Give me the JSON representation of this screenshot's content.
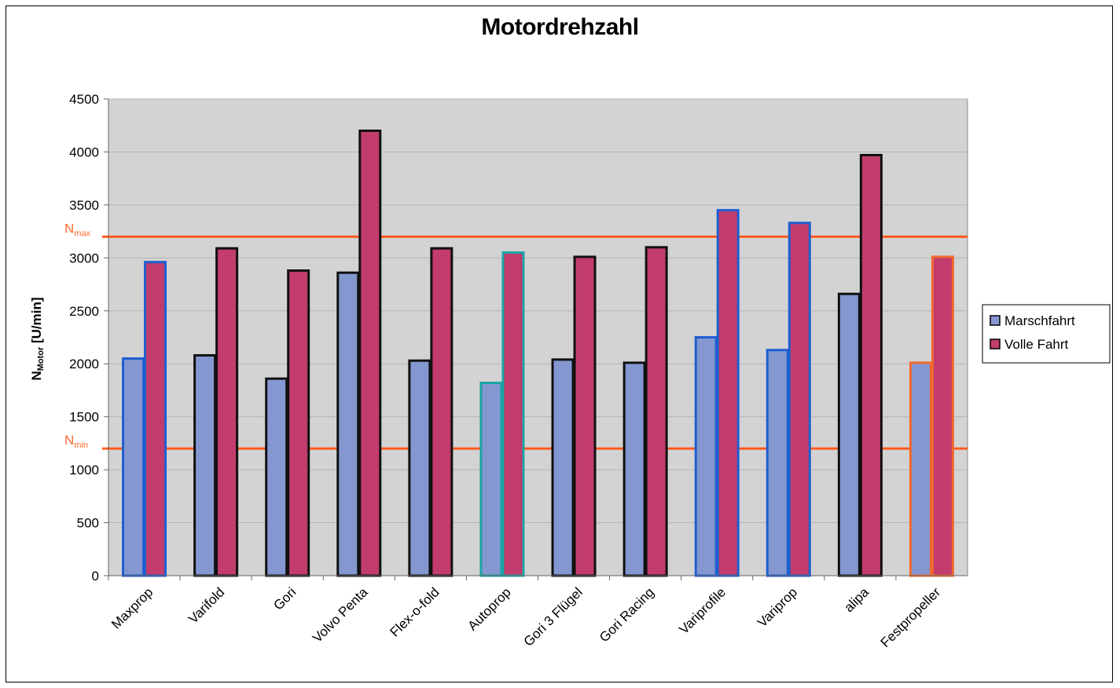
{
  "chart_data": {
    "type": "bar",
    "title": "Motordrehzahl",
    "ylabel": {
      "main": "N",
      "subscript": "Motor",
      "unit": " [U/min]"
    },
    "ylim": [
      0,
      4500
    ],
    "yticks": [
      0,
      500,
      1000,
      1500,
      2000,
      2500,
      3000,
      3500,
      4000,
      4500
    ],
    "grid": true,
    "legend_position": "right",
    "categories": [
      "Maxprop",
      "Varifold",
      "Gori",
      "Volvo Penta",
      "Flex-o-fold",
      "Autoprop",
      "Gori 3 Flügel",
      "Gori Racing",
      "Variprofile",
      "Variprop",
      "alipa",
      "Festpropeller"
    ],
    "outline_colors": [
      "#1f5fd0",
      "#111111",
      "#111111",
      "#111111",
      "#111111",
      "#1aa5a5",
      "#111111",
      "#111111",
      "#1f5fd0",
      "#1f5fd0",
      "#111111",
      "#f06a30"
    ],
    "series": [
      {
        "name": "Marschfahrt",
        "color": "#8497d0",
        "values": [
          2050,
          2080,
          1860,
          2860,
          2030,
          1820,
          2040,
          2010,
          2250,
          2130,
          2660,
          2010
        ]
      },
      {
        "name": "Volle Fahrt",
        "color": "#c23c6e",
        "values": [
          2960,
          3090,
          2880,
          4200,
          3090,
          3050,
          3010,
          3100,
          3450,
          3330,
          3970,
          3010
        ]
      }
    ],
    "reference_lines": [
      {
        "label": "N",
        "subscript": "max",
        "value": 3200,
        "color": "#ff5a1e"
      },
      {
        "label": "N",
        "subscript": "min",
        "value": 1200,
        "color": "#ff5a1e"
      }
    ],
    "plot_background": "#d3d3d3"
  }
}
